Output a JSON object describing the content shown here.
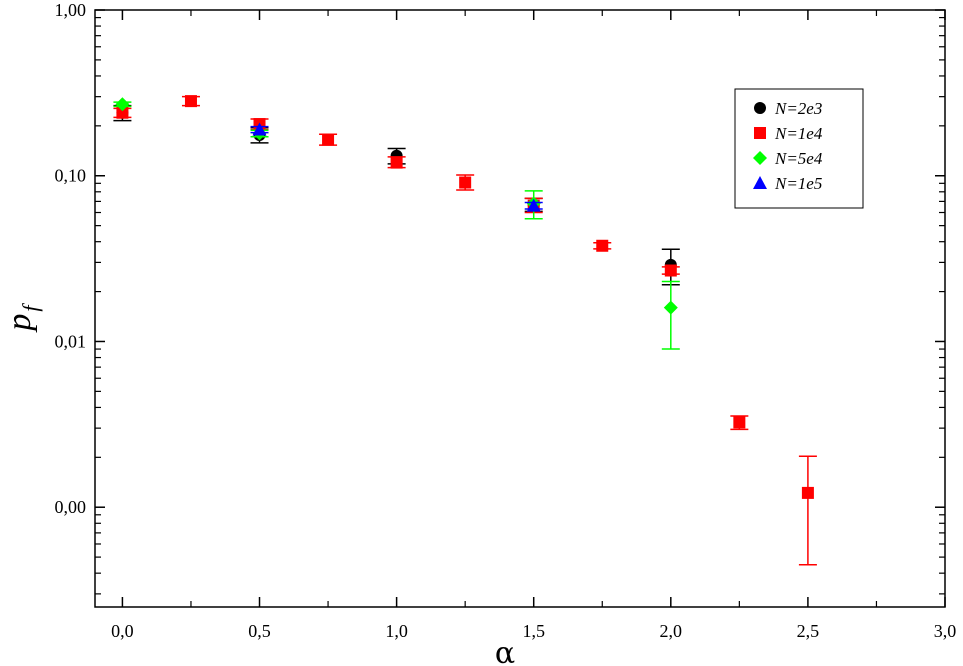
{
  "chart_data": {
    "type": "scatter",
    "title": "",
    "xlabel": "α",
    "ylabel_main": "p",
    "ylabel_sub": "f",
    "xlim": [
      -0.1,
      3.0
    ],
    "ylim": [
      0.00025,
      1.0
    ],
    "yscale": "log",
    "grid": false,
    "legend_position": "top-right",
    "x_ticks": [
      {
        "value": 0.0,
        "label": "0,0"
      },
      {
        "value": 0.5,
        "label": "0,5"
      },
      {
        "value": 1.0,
        "label": "1,0"
      },
      {
        "value": 1.5,
        "label": "1,5"
      },
      {
        "value": 2.0,
        "label": "2,0"
      },
      {
        "value": 2.5,
        "label": "2,5"
      },
      {
        "value": 3.0,
        "label": "3,0"
      }
    ],
    "y_ticks": [
      {
        "value": 1.0,
        "label": "1,00"
      },
      {
        "value": 0.1,
        "label": "0,10"
      },
      {
        "value": 0.01,
        "label": "0,01"
      },
      {
        "value": 0.001,
        "label": "0,00"
      }
    ],
    "series": [
      {
        "name": "N=2e3",
        "marker": "circle",
        "color": "#000000",
        "points": [
          {
            "x": 0.0,
            "y": 0.24,
            "ylow": 0.215,
            "yhigh": 0.265
          },
          {
            "x": 0.5,
            "y": 0.176,
            "ylow": 0.158,
            "yhigh": 0.195
          },
          {
            "x": 1.0,
            "y": 0.132,
            "ylow": 0.118,
            "yhigh": 0.146
          },
          {
            "x": 1.5,
            "y": 0.067,
            "ylow": 0.061,
            "yhigh": 0.073
          },
          {
            "x": 2.0,
            "y": 0.029,
            "ylow": 0.022,
            "yhigh": 0.036
          }
        ]
      },
      {
        "name": "N=1e4",
        "marker": "square",
        "color": "#ff0000",
        "points": [
          {
            "x": 0.0,
            "y": 0.24,
            "ylow": 0.225,
            "yhigh": 0.255
          },
          {
            "x": 0.25,
            "y": 0.282,
            "ylow": 0.265,
            "yhigh": 0.3
          },
          {
            "x": 0.5,
            "y": 0.205,
            "ylow": 0.19,
            "yhigh": 0.22
          },
          {
            "x": 0.75,
            "y": 0.165,
            "ylow": 0.153,
            "yhigh": 0.178
          },
          {
            "x": 1.0,
            "y": 0.12,
            "ylow": 0.112,
            "yhigh": 0.13
          },
          {
            "x": 1.25,
            "y": 0.091,
            "ylow": 0.082,
            "yhigh": 0.101
          },
          {
            "x": 1.5,
            "y": 0.066,
            "ylow": 0.06,
            "yhigh": 0.073
          },
          {
            "x": 1.75,
            "y": 0.0378,
            "ylow": 0.0362,
            "yhigh": 0.0394
          },
          {
            "x": 2.0,
            "y": 0.0268,
            "ylow": 0.0255,
            "yhigh": 0.0282
          },
          {
            "x": 2.25,
            "y": 0.00325,
            "ylow": 0.00295,
            "yhigh": 0.00355
          },
          {
            "x": 2.5,
            "y": 0.00122,
            "ylow": 0.00045,
            "yhigh": 0.00203
          }
        ]
      },
      {
        "name": "N=5e4",
        "marker": "diamond",
        "color": "#00ff00",
        "points": [
          {
            "x": 0.0,
            "y": 0.27,
            "ylow": 0.262,
            "yhigh": 0.278
          },
          {
            "x": 0.5,
            "y": 0.18,
            "ylow": 0.172,
            "yhigh": 0.188
          },
          {
            "x": 1.5,
            "y": 0.068,
            "ylow": 0.055,
            "yhigh": 0.081
          },
          {
            "x": 2.0,
            "y": 0.016,
            "ylow": 0.009,
            "yhigh": 0.023
          }
        ]
      },
      {
        "name": "N=1e5",
        "marker": "triangle",
        "color": "#0000ff",
        "points": [
          {
            "x": 0.5,
            "y": 0.19,
            "ylow": 0.182,
            "yhigh": 0.198
          },
          {
            "x": 1.5,
            "y": 0.066,
            "ylow": 0.063,
            "yhigh": 0.069
          }
        ]
      }
    ]
  }
}
